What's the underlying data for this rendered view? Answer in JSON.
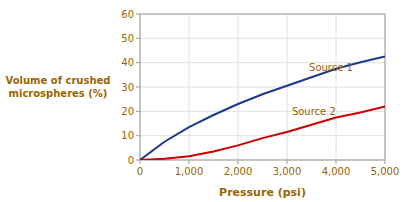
{
  "chart_data": {
    "type": "line",
    "xlabel": "Pressure (psi)",
    "ylabel": "Volume of crushed\nmicrospheres (%)",
    "x": [
      0,
      500,
      1000,
      1500,
      2000,
      2500,
      3000,
      3500,
      4000,
      4500,
      5000
    ],
    "series": [
      {
        "color": "#1a3a8a",
        "values": [
          0,
          7.5,
          13.5,
          18.5,
          23.0,
          27.0,
          30.5,
          34.0,
          37.5,
          40.2,
          42.5
        ]
      },
      {
        "color": "#cc0000",
        "values": [
          0,
          0.5,
          1.5,
          3.5,
          6.0,
          9.0,
          11.5,
          14.5,
          17.5,
          19.5,
          22.0
        ]
      }
    ],
    "annotations": [
      {
        "text": "Source 1",
        "x": 3450,
        "y": 36.5
      },
      {
        "text": "Source 2",
        "x": 3100,
        "y": 18.5
      }
    ],
    "xlim": [
      0,
      5000
    ],
    "ylim": [
      0,
      60
    ],
    "xticks": [
      0,
      {
        "value": 1000,
        "label": "1,000"
      },
      {
        "value": 2000,
        "label": "2,000"
      },
      {
        "value": 3000,
        "label": "3,000"
      },
      {
        "value": 4000,
        "label": "4,000"
      },
      {
        "value": 5000,
        "label": "5,000"
      }
    ],
    "yticks": [
      0,
      10,
      20,
      30,
      40,
      50,
      60
    ],
    "grid": true
  }
}
